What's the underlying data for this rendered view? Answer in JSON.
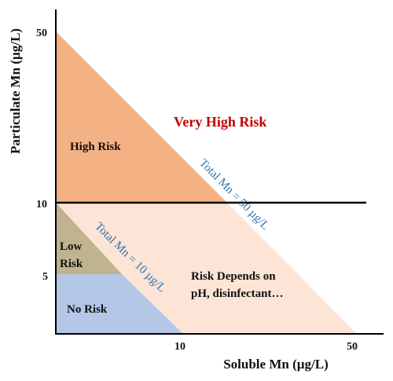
{
  "axes": {
    "xlabel": "Soluble Mn (µg/L)",
    "ylabel": "Particulate Mn (µg/L)",
    "x_ticks": [
      "10",
      "50"
    ],
    "y_ticks": [
      "50",
      "10",
      "5"
    ]
  },
  "regions": {
    "high_risk": "High Risk",
    "very_high_risk": "Very High Risk",
    "low_risk_line1": "Low",
    "low_risk_line2": "Risk",
    "no_risk": "No Risk",
    "depends_line1": "Risk Depends on",
    "depends_line2": "pH, disinfectant…"
  },
  "lines": {
    "total_50": "Total Mn = 50 µg/L",
    "total_10": "Total Mn = 10 µg/L"
  },
  "colors": {
    "high_risk": "#f4b183",
    "risk_depends": "#fce4d6",
    "low_risk": "#bfb48f",
    "no_risk": "#b4c7e7",
    "very_high_risk_text": "#c00000",
    "line_label_text": "#2e74b5",
    "axis": "#000000"
  }
}
